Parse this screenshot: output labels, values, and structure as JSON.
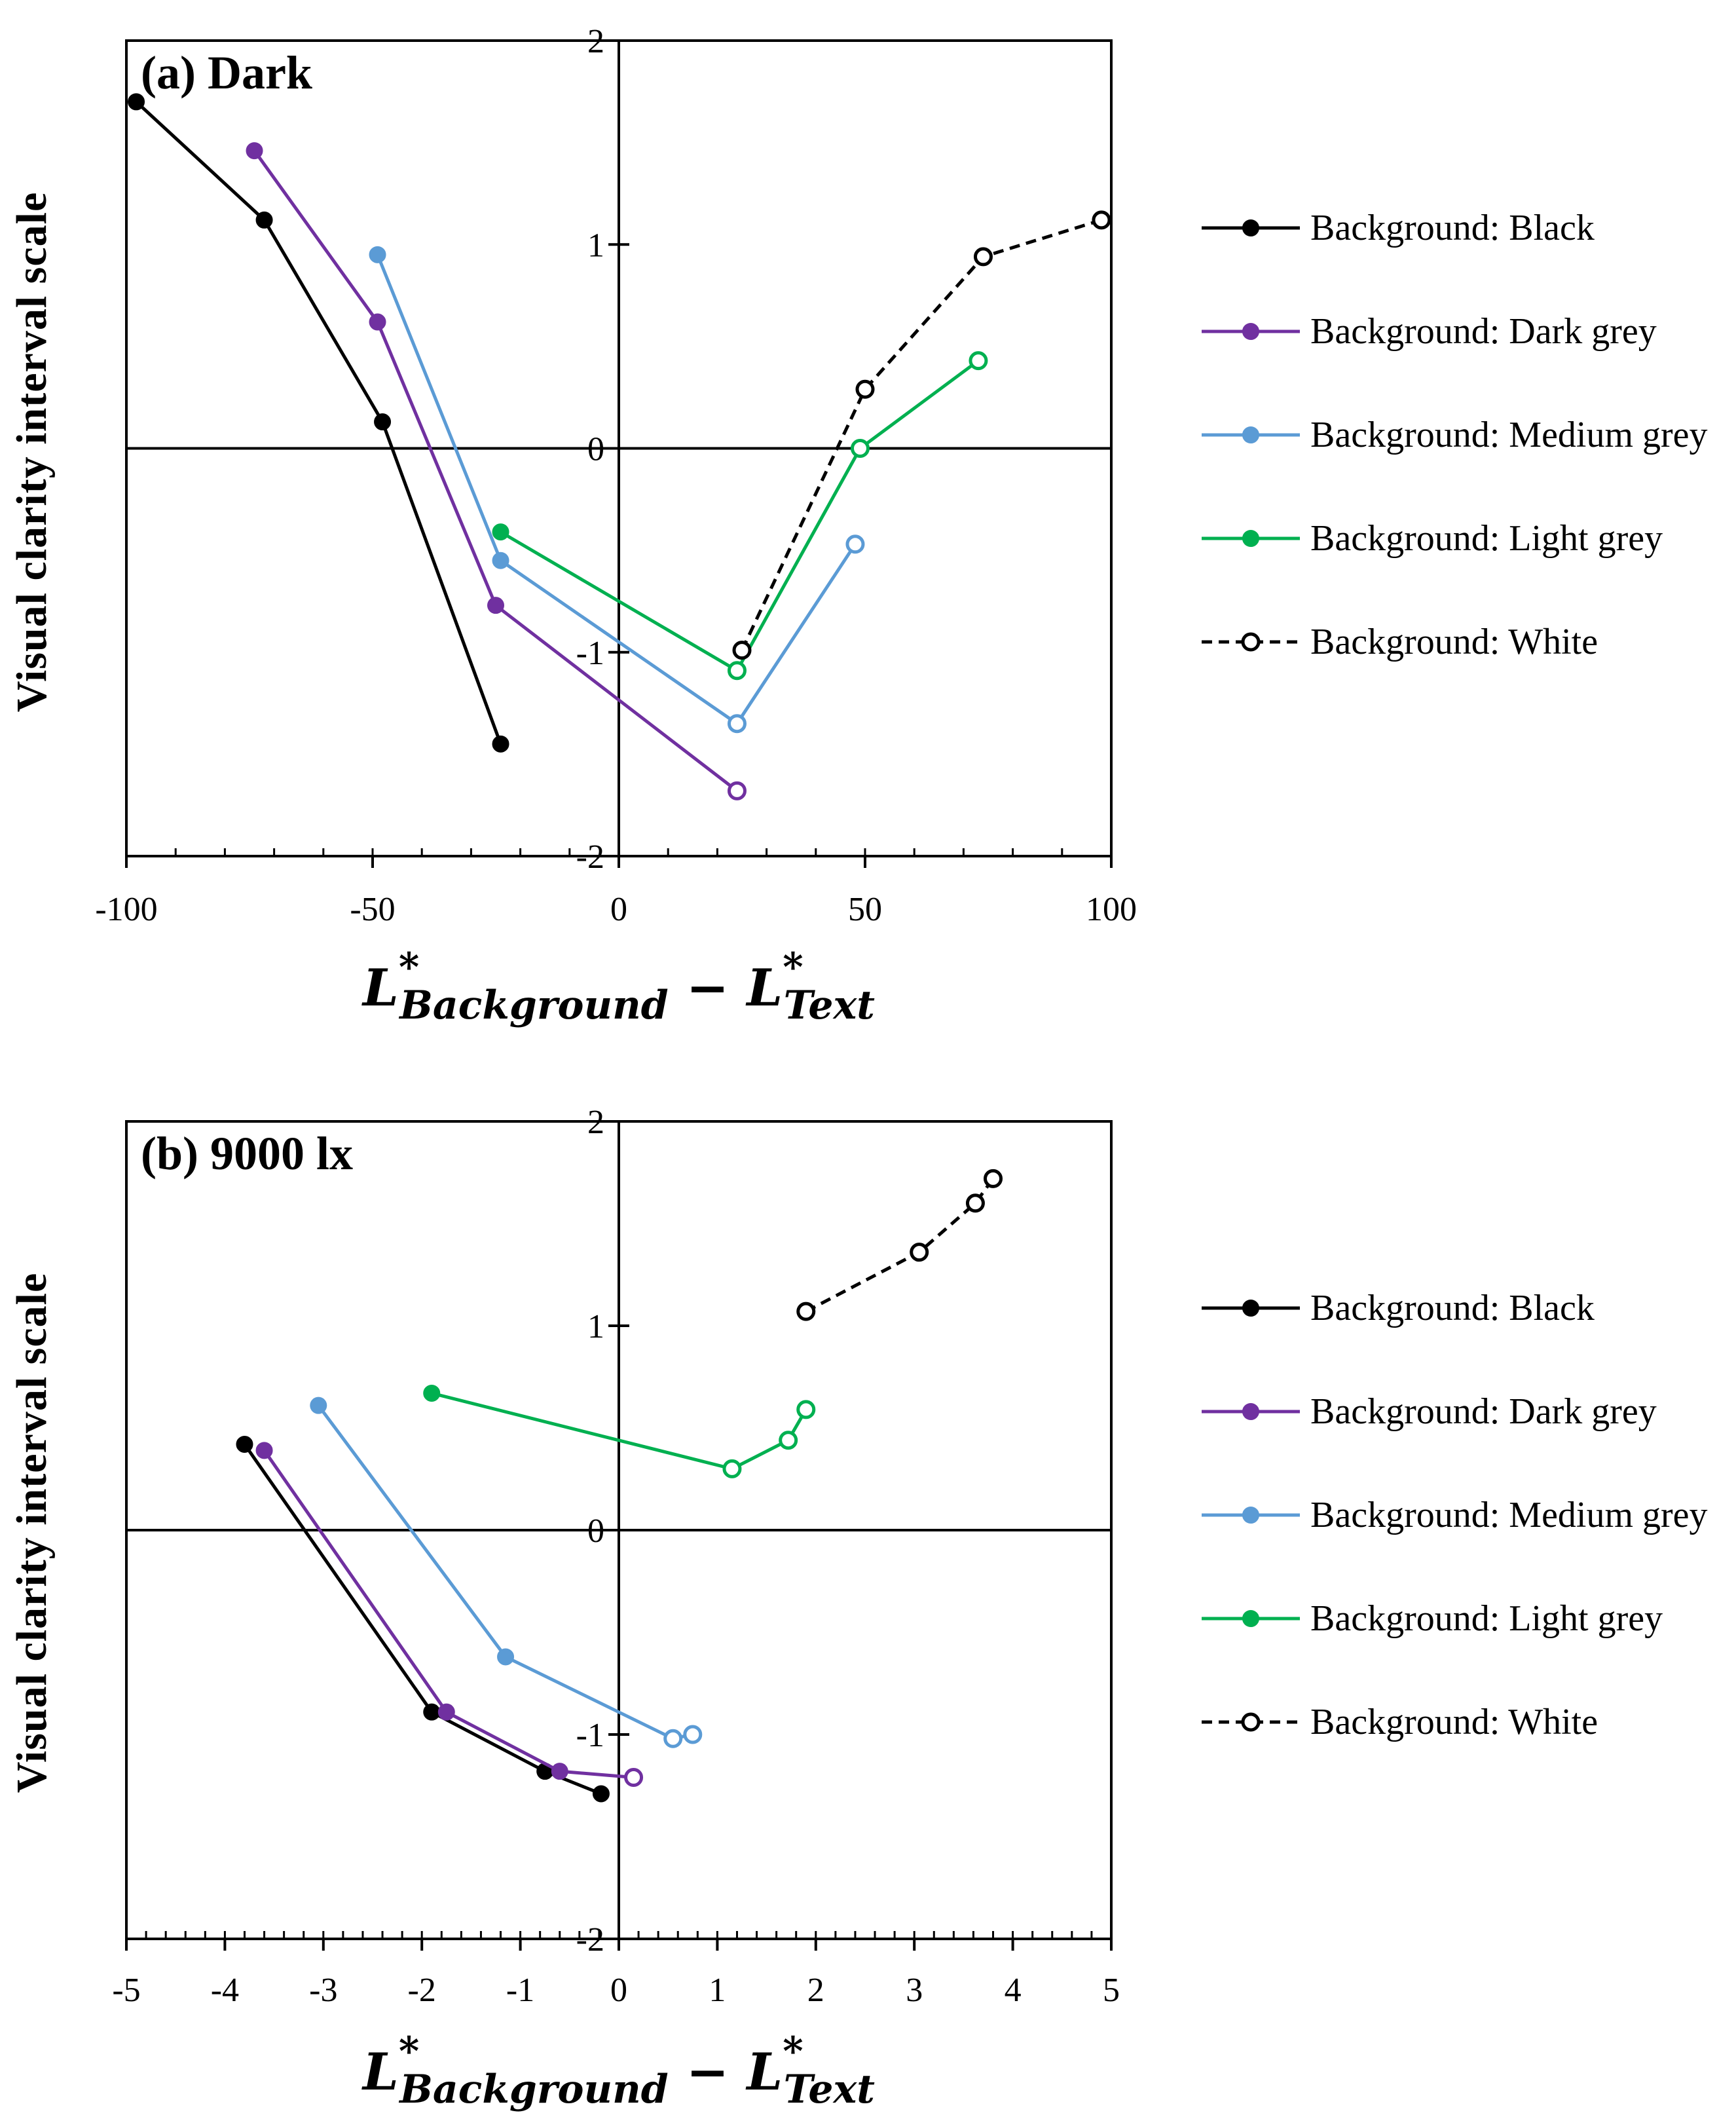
{
  "chart_data": [
    {
      "type": "line",
      "title": "(a) Dark",
      "ylabel": "Visual clarity interval scale",
      "xlabel": {
        "L": "L",
        "star": "*",
        "background_sub": "Background",
        "minus": "−",
        "text_sub": "Text"
      },
      "xlim": [
        -100,
        100
      ],
      "ylim": [
        -2,
        2
      ],
      "xticks": [
        -100,
        -50,
        0,
        50,
        100
      ],
      "yticks": [
        -2,
        -1,
        0,
        1,
        2
      ],
      "grid": false,
      "legend_position": "right",
      "series": [
        {
          "name": "Background: Black",
          "color": "#000000",
          "dashed": false,
          "hollow": [
            false,
            false,
            false,
            false
          ],
          "x": [
            -98,
            -72,
            -48,
            -24
          ],
          "y": [
            1.7,
            1.12,
            0.13,
            -1.45
          ]
        },
        {
          "name": "Background: Dark grey",
          "color": "#7030a0",
          "dashed": false,
          "hollow": [
            false,
            false,
            false,
            true
          ],
          "x": [
            -74,
            -49,
            -25,
            24
          ],
          "y": [
            1.46,
            0.62,
            -0.77,
            -1.68
          ]
        },
        {
          "name": "Background: Medium grey",
          "color": "#5b9bd5",
          "dashed": false,
          "hollow": [
            false,
            false,
            true,
            true
          ],
          "x": [
            -49,
            -24,
            24,
            48
          ],
          "y": [
            0.95,
            -0.55,
            -1.35,
            -0.47
          ]
        },
        {
          "name": "Background: Light grey",
          "color": "#00b050",
          "dashed": false,
          "hollow": [
            false,
            true,
            true,
            true
          ],
          "x": [
            -24,
            24,
            49,
            73
          ],
          "y": [
            -0.41,
            -1.09,
            0.0,
            0.43
          ]
        },
        {
          "name": "Background: White",
          "color": "#000000",
          "dashed": true,
          "hollow": [
            true,
            true,
            true,
            true
          ],
          "x": [
            25,
            50,
            74,
            98
          ],
          "y": [
            -0.99,
            0.29,
            0.94,
            1.12
          ]
        }
      ]
    },
    {
      "type": "line",
      "title": "(b) 9000 lx",
      "ylabel": "Visual clarity interval scale",
      "xlabel": {
        "L": "L",
        "star": "*",
        "background_sub": "Background",
        "minus": "−",
        "text_sub": "Text"
      },
      "xlim": [
        -5,
        5
      ],
      "ylim": [
        -2,
        2
      ],
      "xticks": [
        -5,
        -4,
        -3,
        -2,
        -1,
        0,
        1,
        2,
        3,
        4,
        5
      ],
      "yticks": [
        -2,
        -1,
        0,
        1,
        2
      ],
      "grid": false,
      "legend_position": "right",
      "series": [
        {
          "name": "Background: Black",
          "color": "#000000",
          "dashed": false,
          "hollow": [
            false,
            false,
            false,
            false
          ],
          "x": [
            -3.8,
            -1.9,
            -0.75,
            -0.18
          ],
          "y": [
            0.42,
            -0.89,
            -1.18,
            -1.29
          ]
        },
        {
          "name": "Background: Dark grey",
          "color": "#7030a0",
          "dashed": false,
          "hollow": [
            false,
            false,
            false,
            true
          ],
          "x": [
            -3.6,
            -1.75,
            -0.6,
            0.15
          ],
          "y": [
            0.39,
            -0.89,
            -1.18,
            -1.21
          ]
        },
        {
          "name": "Background: Medium grey",
          "color": "#5b9bd5",
          "dashed": false,
          "hollow": [
            false,
            false,
            true,
            true
          ],
          "x": [
            -3.05,
            -1.15,
            0.55,
            0.75
          ],
          "y": [
            0.61,
            -0.62,
            -1.02,
            -1.0
          ]
        },
        {
          "name": "Background: Light grey",
          "color": "#00b050",
          "dashed": false,
          "hollow": [
            false,
            true,
            true,
            true
          ],
          "x": [
            -1.9,
            1.15,
            1.72,
            1.9
          ],
          "y": [
            0.67,
            0.3,
            0.44,
            0.59
          ]
        },
        {
          "name": "Background: White",
          "color": "#000000",
          "dashed": true,
          "hollow": [
            true,
            true,
            true,
            true
          ],
          "x": [
            1.9,
            3.05,
            3.62,
            3.8
          ],
          "y": [
            1.07,
            1.36,
            1.6,
            1.72
          ]
        }
      ]
    }
  ]
}
